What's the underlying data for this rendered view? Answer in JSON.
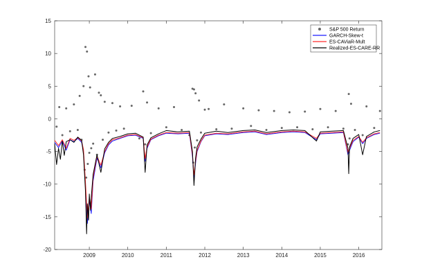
{
  "chart_data": {
    "type": "line",
    "title": "",
    "xlabel": "",
    "ylabel": "",
    "xlim": [
      2008.0,
      2016.5
    ],
    "ylim": [
      -20,
      15
    ],
    "x_ticks": [
      {
        "value": 2008.9,
        "label": "2009"
      },
      {
        "value": 2009.9,
        "label": "2010"
      },
      {
        "value": 2010.9,
        "label": "2011"
      },
      {
        "value": 2011.9,
        "label": "2012"
      },
      {
        "value": 2012.9,
        "label": "2013"
      },
      {
        "value": 2013.9,
        "label": "2014"
      },
      {
        "value": 2014.9,
        "label": "2015"
      },
      {
        "value": 2015.9,
        "label": "2016"
      }
    ],
    "y_ticks": [
      15,
      10,
      5,
      0,
      -5,
      -10,
      -15,
      -20
    ],
    "grid": false,
    "legend": {
      "position": "top-right"
    },
    "legend_entries": [
      {
        "label": "S&P 500 Return",
        "color": "#666666",
        "marker": "dot"
      },
      {
        "label": "GARCH-Skew-t",
        "color": "#1a1aff",
        "marker": "line"
      },
      {
        "label": "ES-CAViaR-Mult",
        "color": "#ff2a2a",
        "marker": "line"
      },
      {
        "label": "Realized-ES-CARE-RR",
        "color": "#000000",
        "marker": "line"
      }
    ],
    "series": [
      {
        "name": "S&P 500 Return",
        "kind": "scatter",
        "color": "#666666",
        "x": [
          2008.05,
          2008.12,
          2008.2,
          2008.3,
          2008.4,
          2008.5,
          2008.6,
          2008.65,
          2008.7,
          2008.75,
          2008.78,
          2008.8,
          2008.82,
          2008.84,
          2008.86,
          2008.88,
          2008.9,
          2008.92,
          2008.95,
          2009.0,
          2009.05,
          2009.1,
          2009.15,
          2009.2,
          2009.25,
          2009.3,
          2009.4,
          2009.5,
          2009.6,
          2009.7,
          2009.8,
          2010.0,
          2010.2,
          2010.3,
          2010.35,
          2010.4,
          2010.5,
          2010.7,
          2010.9,
          2011.1,
          2011.3,
          2011.5,
          2011.58,
          2011.6,
          2011.62,
          2011.64,
          2011.66,
          2011.7,
          2011.75,
          2011.8,
          2011.9,
          2012.0,
          2012.2,
          2012.4,
          2012.6,
          2012.9,
          2013.1,
          2013.3,
          2013.5,
          2013.7,
          2013.9,
          2014.1,
          2014.3,
          2014.5,
          2014.7,
          2014.9,
          2015.1,
          2015.3,
          2015.5,
          2015.62,
          2015.64,
          2015.66,
          2015.7,
          2015.8,
          2016.0,
          2016.1,
          2016.3,
          2016.45
        ],
        "values": [
          -1.2,
          1.8,
          -2.5,
          1.6,
          -1.9,
          2.2,
          -1.7,
          3.5,
          -3.2,
          5.0,
          -7.8,
          11.0,
          -9.0,
          10.3,
          -6.9,
          6.5,
          -5.2,
          4.8,
          -4.5,
          -3.8,
          6.8,
          -5.5,
          4.0,
          3.6,
          -3.2,
          2.6,
          -2.1,
          2.4,
          -1.8,
          1.9,
          -1.5,
          2.0,
          -3.0,
          4.2,
          -3.9,
          2.5,
          -2.2,
          1.6,
          -1.3,
          1.8,
          -1.7,
          -2.5,
          4.6,
          -6.7,
          4.5,
          -4.4,
          3.9,
          -3.3,
          2.8,
          -2.1,
          1.4,
          1.5,
          -1.6,
          2.2,
          -1.5,
          1.6,
          -1.1,
          1.3,
          -1.7,
          1.2,
          -1.4,
          1.0,
          -1.3,
          1.1,
          -1.6,
          1.5,
          -1.3,
          1.2,
          -1.5,
          -3.9,
          3.8,
          -3.0,
          2.3,
          -1.7,
          -2.5,
          1.9,
          -1.4,
          1.2
        ]
      },
      {
        "name": "GARCH-Skew-t",
        "kind": "line",
        "color": "#1a1aff",
        "x": [
          2008.0,
          2008.1,
          2008.2,
          2008.3,
          2008.4,
          2008.5,
          2008.6,
          2008.7,
          2008.75,
          2008.8,
          2008.85,
          2008.9,
          2008.95,
          2009.0,
          2009.1,
          2009.2,
          2009.3,
          2009.4,
          2009.5,
          2009.7,
          2009.9,
          2010.1,
          2010.3,
          2010.35,
          2010.4,
          2010.5,
          2010.7,
          2010.9,
          2011.2,
          2011.5,
          2011.58,
          2011.62,
          2011.66,
          2011.7,
          2011.8,
          2011.9,
          2012.2,
          2012.5,
          2012.9,
          2013.2,
          2013.5,
          2013.9,
          2014.2,
          2014.5,
          2014.8,
          2014.9,
          2015.2,
          2015.5,
          2015.62,
          2015.66,
          2015.75,
          2015.9,
          2016.0,
          2016.1,
          2016.3,
          2016.45
        ],
        "values": [
          -3.6,
          -4.4,
          -3.4,
          -4.8,
          -3.2,
          -3.5,
          -3.0,
          -3.6,
          -5.0,
          -10.2,
          -16.0,
          -12.5,
          -14.5,
          -9.5,
          -6.0,
          -7.5,
          -5.2,
          -4.0,
          -3.4,
          -3.0,
          -2.6,
          -2.5,
          -3.0,
          -6.5,
          -4.5,
          -3.2,
          -2.6,
          -2.2,
          -2.3,
          -2.2,
          -5.8,
          -9.0,
          -6.8,
          -5.0,
          -3.5,
          -2.6,
          -2.3,
          -2.4,
          -2.1,
          -2.0,
          -2.4,
          -2.1,
          -2.0,
          -2.1,
          -3.2,
          -2.3,
          -2.2,
          -2.1,
          -5.5,
          -4.8,
          -3.5,
          -2.8,
          -3.8,
          -3.0,
          -2.4,
          -2.2
        ]
      },
      {
        "name": "ES-CAViaR-Mult",
        "kind": "line",
        "color": "#ff2a2a",
        "x": [
          2008.0,
          2008.1,
          2008.2,
          2008.3,
          2008.4,
          2008.5,
          2008.6,
          2008.7,
          2008.75,
          2008.8,
          2008.85,
          2008.9,
          2008.95,
          2009.0,
          2009.1,
          2009.2,
          2009.3,
          2009.4,
          2009.5,
          2009.7,
          2009.9,
          2010.1,
          2010.3,
          2010.35,
          2010.4,
          2010.5,
          2010.7,
          2010.9,
          2011.2,
          2011.5,
          2011.58,
          2011.62,
          2011.66,
          2011.7,
          2011.8,
          2011.9,
          2012.2,
          2012.5,
          2012.9,
          2013.2,
          2013.5,
          2013.9,
          2014.2,
          2014.5,
          2014.8,
          2014.9,
          2015.2,
          2015.5,
          2015.62,
          2015.66,
          2015.75,
          2015.9,
          2016.0,
          2016.1,
          2016.3,
          2016.45
        ],
        "values": [
          -3.3,
          -4.1,
          -3.2,
          -4.5,
          -3.0,
          -3.3,
          -2.9,
          -3.4,
          -4.7,
          -9.6,
          -15.2,
          -12.0,
          -13.8,
          -9.0,
          -5.7,
          -7.1,
          -5.0,
          -3.8,
          -3.2,
          -2.9,
          -2.5,
          -2.4,
          -2.9,
          -6.1,
          -4.3,
          -3.1,
          -2.5,
          -2.1,
          -2.2,
          -2.1,
          -5.5,
          -8.6,
          -6.5,
          -4.8,
          -3.4,
          -2.5,
          -2.2,
          -2.3,
          -2.0,
          -1.9,
          -2.3,
          -2.0,
          -1.9,
          -2.0,
          -3.0,
          -2.2,
          -2.1,
          -2.0,
          -5.2,
          -4.5,
          -3.3,
          -2.7,
          -3.6,
          -2.9,
          -2.3,
          -2.1
        ]
      },
      {
        "name": "Realized-ES-CARE-RR",
        "kind": "line",
        "color": "#000000",
        "x": [
          2008.0,
          2008.05,
          2008.1,
          2008.15,
          2008.2,
          2008.25,
          2008.3,
          2008.4,
          2008.5,
          2008.6,
          2008.7,
          2008.75,
          2008.8,
          2008.83,
          2008.85,
          2008.88,
          2008.9,
          2008.93,
          2008.95,
          2009.0,
          2009.1,
          2009.2,
          2009.3,
          2009.4,
          2009.5,
          2009.7,
          2009.9,
          2010.1,
          2010.3,
          2010.35,
          2010.4,
          2010.5,
          2010.7,
          2010.9,
          2011.2,
          2011.5,
          2011.58,
          2011.62,
          2011.66,
          2011.7,
          2011.8,
          2011.9,
          2012.2,
          2012.5,
          2012.9,
          2013.2,
          2013.5,
          2013.9,
          2014.2,
          2014.5,
          2014.8,
          2014.9,
          2015.2,
          2015.5,
          2015.62,
          2015.64,
          2015.66,
          2015.75,
          2015.9,
          2016.0,
          2016.1,
          2016.3,
          2016.45
        ],
        "values": [
          -3.8,
          -7.0,
          -4.5,
          -6.2,
          -3.4,
          -5.6,
          -3.5,
          -3.2,
          -3.6,
          -2.8,
          -3.3,
          -5.5,
          -11.0,
          -17.6,
          -13.0,
          -15.5,
          -11.5,
          -14.0,
          -12.0,
          -8.5,
          -5.5,
          -8.2,
          -4.6,
          -3.6,
          -3.0,
          -2.7,
          -2.3,
          -2.2,
          -2.8,
          -8.2,
          -4.0,
          -2.9,
          -2.3,
          -1.8,
          -2.0,
          -1.9,
          -5.0,
          -10.2,
          -6.0,
          -4.3,
          -3.1,
          -2.2,
          -1.9,
          -2.1,
          -1.8,
          -1.7,
          -2.1,
          -1.8,
          -1.7,
          -1.8,
          -3.4,
          -2.0,
          -1.9,
          -1.8,
          -4.5,
          -8.4,
          -4.3,
          -3.0,
          -2.4,
          -5.5,
          -2.7,
          -2.0,
          -1.8
        ]
      }
    ]
  }
}
